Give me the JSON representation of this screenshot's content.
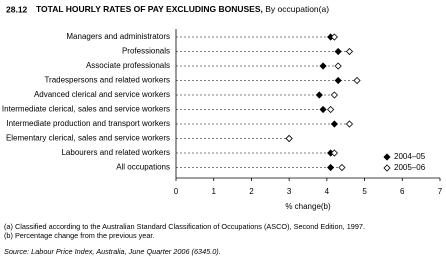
{
  "header": {
    "number": "28.12",
    "title": "TOTAL HOURLY RATES OF PAY EXCLUDING BONUSES,",
    "subtitle": "By occupation(a)"
  },
  "chart_data": {
    "type": "dot",
    "categories": [
      "Managers and administrators",
      "Professionals",
      "Associate professionals",
      "Tradespersons and related workers",
      "Advanced clerical and service workers",
      "Intermediate clerical, sales and service workers",
      "Intermediate production and transport workers",
      "Elementary clerical, sales and service workers",
      "Labourers and related workers",
      "All occupations"
    ],
    "series": [
      {
        "name": "2004–05",
        "color": "#000000",
        "marker": "filled-diamond",
        "values": [
          4.1,
          4.3,
          3.9,
          4.3,
          3.8,
          3.9,
          4.2,
          3.0,
          4.1,
          4.1
        ]
      },
      {
        "name": "2005–06",
        "color": "#000000",
        "marker": "open-diamond",
        "values": [
          4.2,
          4.6,
          4.3,
          4.8,
          4.2,
          4.1,
          4.6,
          3.0,
          4.2,
          4.4
        ]
      }
    ],
    "xlim": [
      0,
      7
    ],
    "xticks": [
      0,
      1,
      2,
      3,
      4,
      5,
      6,
      7
    ],
    "xlabel": "% change(b)",
    "legend": "lower right"
  },
  "footnotes": [
    "(a) Classified according to the Australian Standard Classification of Occupations (ASCO), Second Edition, 1997.",
    "(b) Percentage change from the previous year."
  ],
  "source": "Source: Labour Price Index, Australia, June Quarter 2006 (6345.0)."
}
